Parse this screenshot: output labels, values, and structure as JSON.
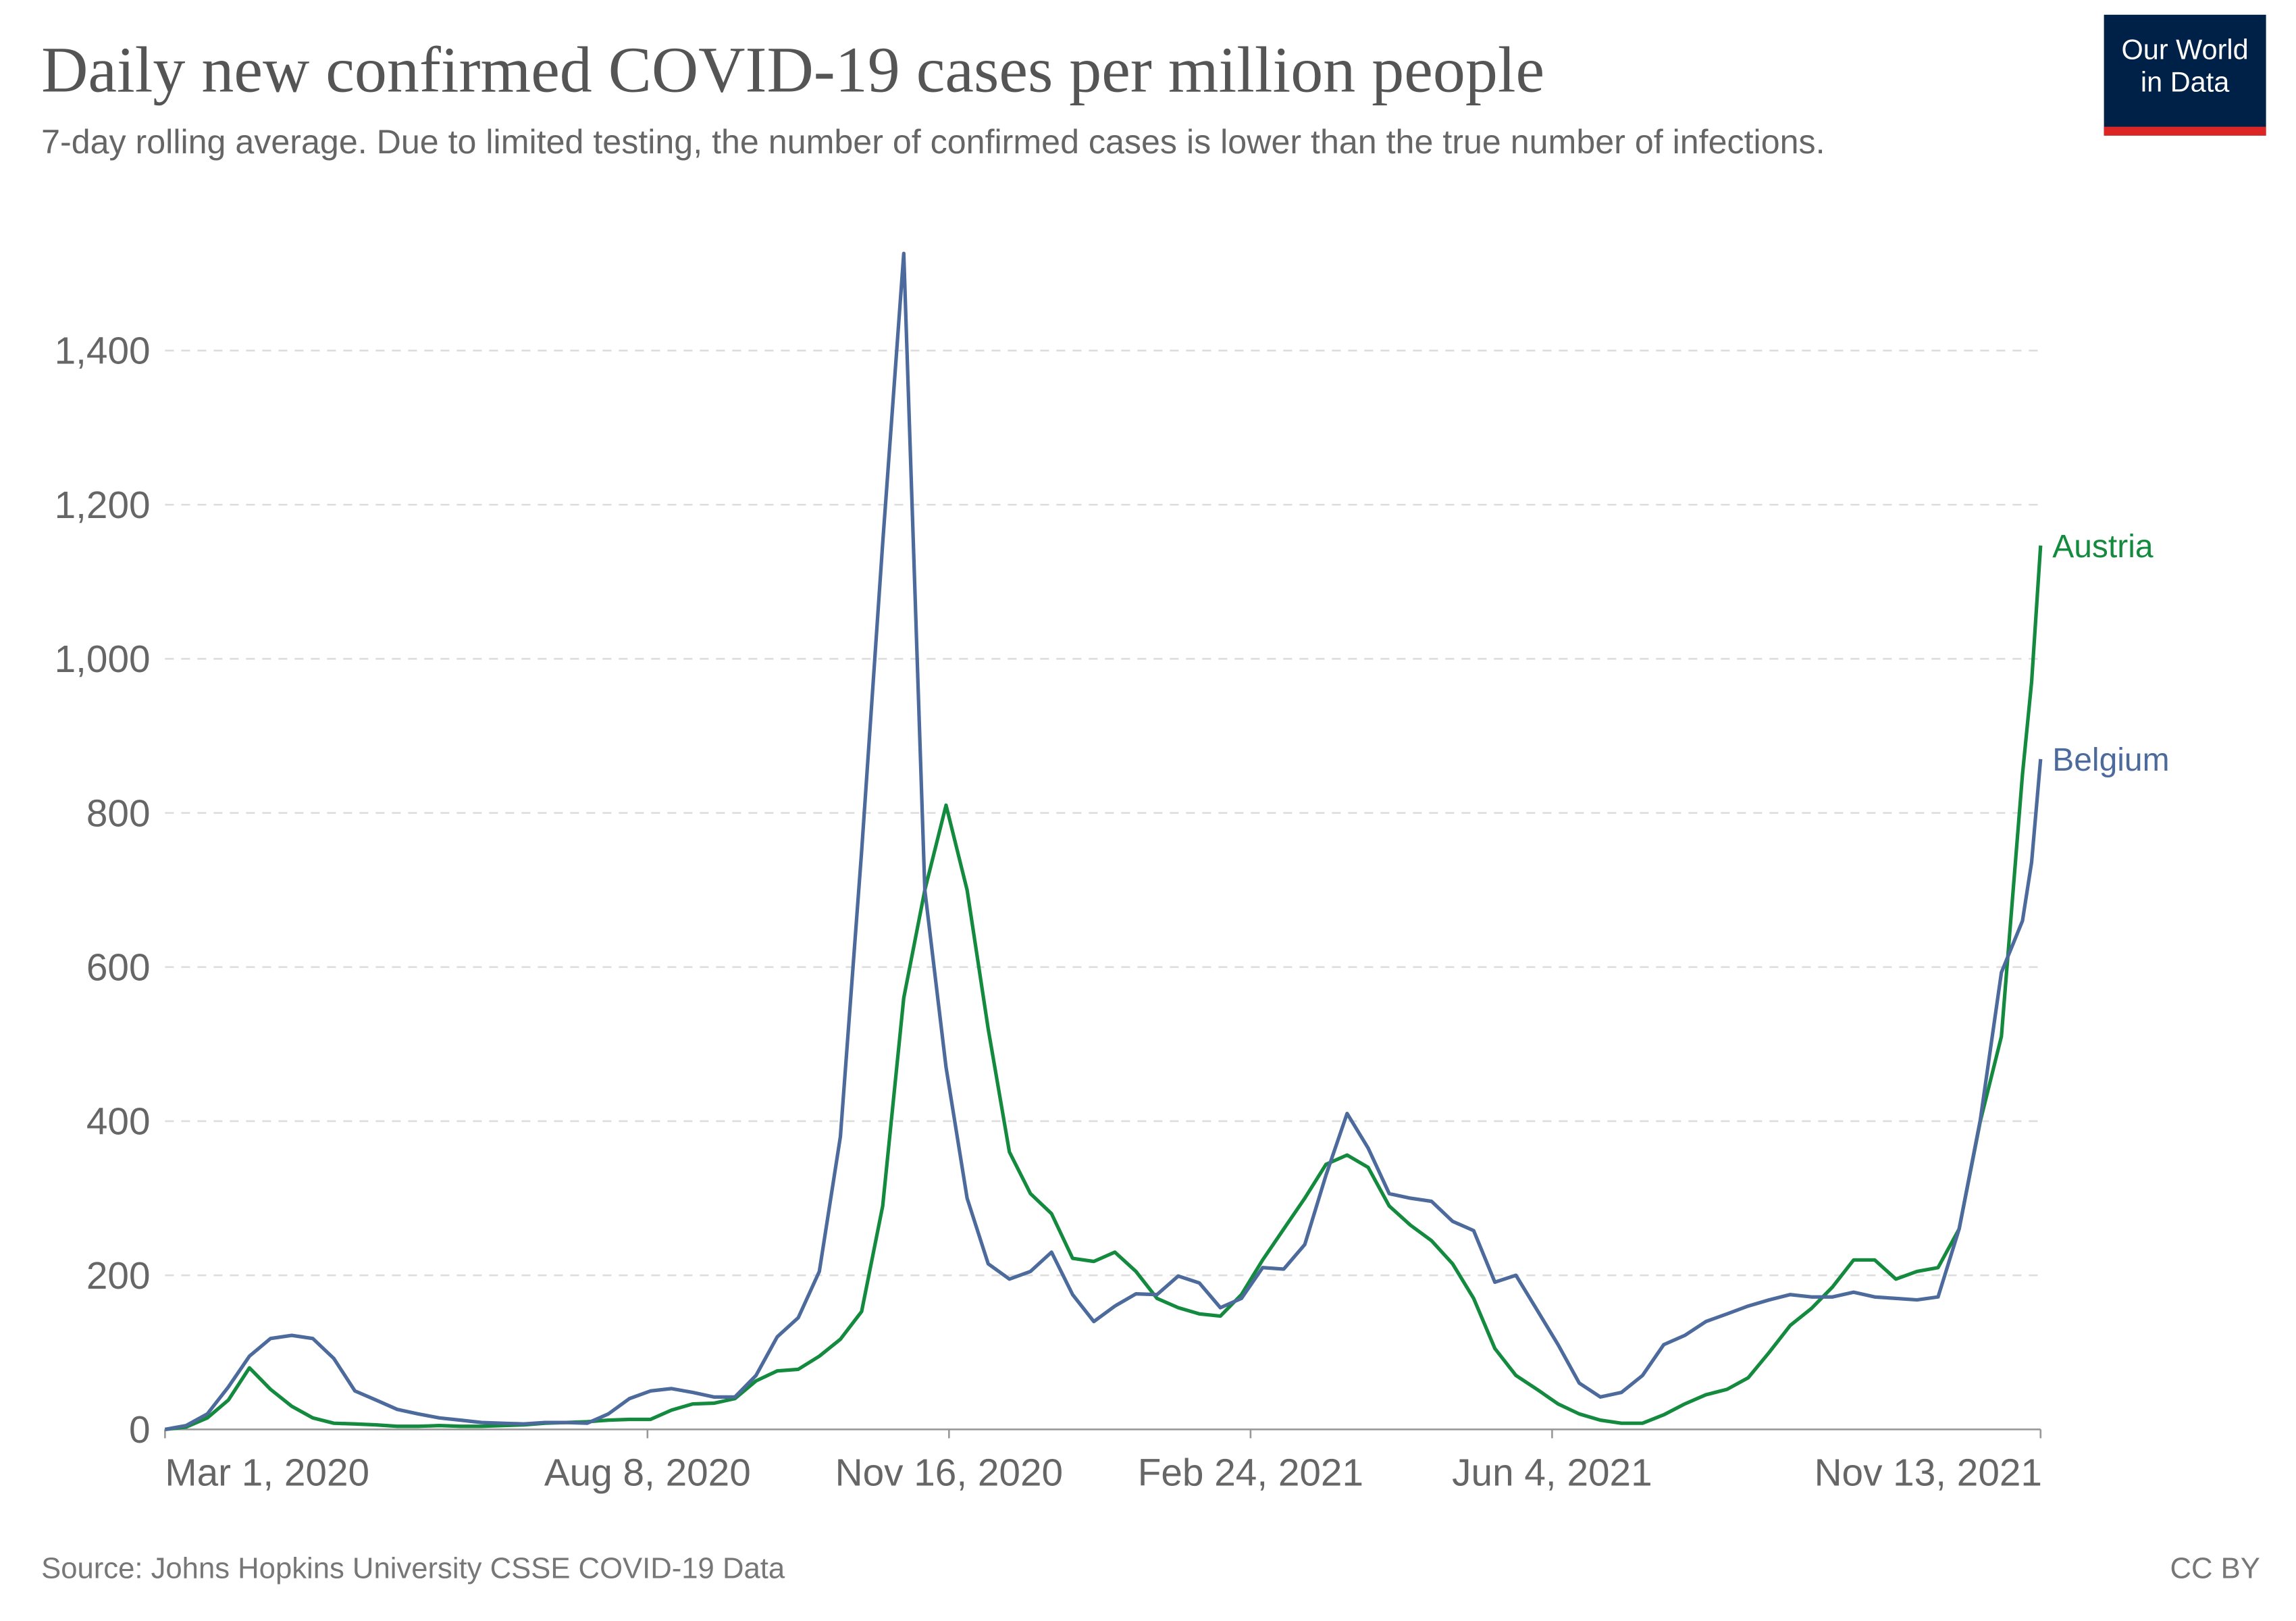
{
  "chart_data": {
    "type": "line",
    "title": "Daily new confirmed COVID-19 cases per million people",
    "subtitle": "7-day rolling average. Due to limited testing, the number of confirmed cases is lower than the true number of infections.",
    "logo": "Our World in Data",
    "source": "Source: Johns Hopkins University CSSE COVID-19 Data",
    "license": "CC BY",
    "x": [
      "2020-03-01",
      "2020-03-08",
      "2020-03-15",
      "2020-03-22",
      "2020-03-29",
      "2020-04-05",
      "2020-04-12",
      "2020-04-19",
      "2020-04-26",
      "2020-05-03",
      "2020-05-10",
      "2020-05-17",
      "2020-05-24",
      "2020-05-31",
      "2020-06-07",
      "2020-06-14",
      "2020-06-21",
      "2020-06-28",
      "2020-07-05",
      "2020-07-12",
      "2020-07-19",
      "2020-07-26",
      "2020-08-02",
      "2020-08-09",
      "2020-08-16",
      "2020-08-23",
      "2020-08-30",
      "2020-09-06",
      "2020-09-13",
      "2020-09-20",
      "2020-09-27",
      "2020-10-04",
      "2020-10-11",
      "2020-10-18",
      "2020-10-25",
      "2020-11-01",
      "2020-11-08",
      "2020-11-15",
      "2020-11-22",
      "2020-11-29",
      "2020-12-06",
      "2020-12-13",
      "2020-12-20",
      "2020-12-27",
      "2021-01-03",
      "2021-01-10",
      "2021-01-17",
      "2021-01-24",
      "2021-01-31",
      "2021-02-07",
      "2021-02-14",
      "2021-02-21",
      "2021-02-28",
      "2021-03-07",
      "2021-03-14",
      "2021-03-21",
      "2021-03-28",
      "2021-04-04",
      "2021-04-11",
      "2021-04-18",
      "2021-04-25",
      "2021-05-02",
      "2021-05-09",
      "2021-05-16",
      "2021-05-23",
      "2021-05-30",
      "2021-06-06",
      "2021-06-13",
      "2021-06-20",
      "2021-06-27",
      "2021-07-04",
      "2021-07-11",
      "2021-07-18",
      "2021-07-25",
      "2021-08-01",
      "2021-08-08",
      "2021-08-15",
      "2021-08-22",
      "2021-08-29",
      "2021-09-05",
      "2021-09-12",
      "2021-09-19",
      "2021-09-26",
      "2021-10-03",
      "2021-10-10",
      "2021-10-17",
      "2021-10-24",
      "2021-10-31",
      "2021-11-07",
      "2021-11-10",
      "2021-11-13"
    ],
    "series": [
      {
        "name": "Austria",
        "color": "#138a3e",
        "values": [
          0,
          3,
          15,
          38,
          80,
          52,
          30,
          15,
          8,
          7,
          6,
          4,
          4,
          5,
          4,
          4,
          5,
          6,
          8,
          9,
          10,
          12,
          13,
          13,
          25,
          33,
          34,
          40,
          63,
          76,
          78,
          95,
          117,
          153,
          290,
          560,
          700,
          810,
          700,
          520,
          360,
          306,
          280,
          222,
          218,
          230,
          205,
          170,
          158,
          150,
          147,
          175,
          220,
          260,
          300,
          344,
          356,
          340,
          290,
          265,
          245,
          215,
          170,
          105,
          70,
          52,
          33,
          20,
          12,
          8,
          8,
          19,
          33,
          45,
          52,
          67,
          100,
          135,
          157,
          185,
          220,
          220,
          195,
          205,
          210,
          260,
          400,
          510,
          850,
          970,
          1147
        ]
      },
      {
        "name": "Belgium",
        "color": "#4c6a9c",
        "values": [
          0,
          5,
          20,
          55,
          95,
          118,
          122,
          118,
          92,
          50,
          38,
          26,
          20,
          15,
          12,
          9,
          8,
          7,
          9,
          9,
          8,
          20,
          40,
          50,
          53,
          48,
          42,
          42,
          70,
          120,
          145,
          205,
          380,
          750,
          1150,
          1526,
          700,
          470,
          300,
          215,
          195,
          205,
          230,
          175,
          140,
          160,
          176,
          175,
          199,
          190,
          158,
          170,
          210,
          208,
          240,
          330,
          410,
          365,
          306,
          300,
          296,
          270,
          258,
          191,
          200,
          155,
          110,
          60,
          42,
          48,
          70,
          110,
          122,
          140,
          150,
          160,
          168,
          175,
          172,
          172,
          178,
          172,
          170,
          168,
          172,
          260,
          402,
          593,
          660,
          736,
          870
        ]
      }
    ],
    "xlim": [
      "2020-03-01",
      "2021-11-13"
    ],
    "xticks": [
      {
        "value": "2020-03-01",
        "label": "Mar 1, 2020"
      },
      {
        "value": "2020-08-08",
        "label": "Aug 8, 2020"
      },
      {
        "value": "2020-11-16",
        "label": "Nov 16, 2020"
      },
      {
        "value": "2021-02-24",
        "label": "Feb 24, 2021"
      },
      {
        "value": "2021-06-04",
        "label": "Jun 4, 2021"
      },
      {
        "value": "2021-11-13",
        "label": "Nov 13, 2021"
      }
    ],
    "ylim": [
      0,
      1540
    ],
    "yticks": [
      0,
      200,
      400,
      600,
      800,
      {
        "value": 1000,
        "label": "1,000"
      },
      {
        "value": 1200,
        "label": "1,200"
      },
      {
        "value": 1400,
        "label": "1,400"
      }
    ],
    "grid": true
  }
}
